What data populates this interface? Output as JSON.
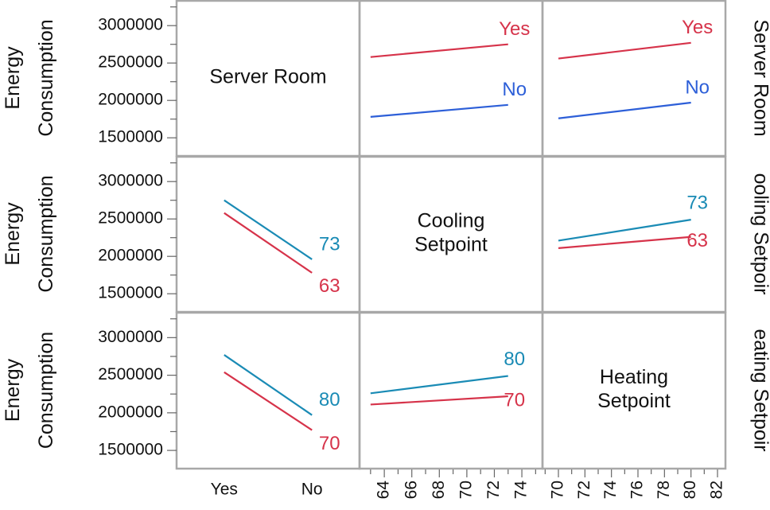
{
  "chart_data": {
    "type": "line",
    "title": "",
    "y_label": "Energy Consumption",
    "y_ticks": [
      1500000,
      2000000,
      2500000,
      3000000
    ],
    "y_range": [
      1300000,
      3300000
    ],
    "variables": [
      "Server Room",
      "Cooling Setpoint",
      "Heating Setpoint"
    ],
    "diagonal_labels": [
      [
        "Server Room"
      ],
      [
        "Cooling",
        "Setpoint"
      ],
      [
        "Heating",
        "Setpoint"
      ]
    ],
    "right_labels": [
      "Server Room",
      "ooling Setpoir",
      "eating Setpoir"
    ],
    "x_axes": [
      {
        "type": "categorical",
        "ticks": [
          "Yes",
          "No"
        ]
      },
      {
        "type": "numeric",
        "ticks": [
          64,
          66,
          68,
          70,
          72,
          74
        ],
        "range": [
          62.2,
          75.5
        ]
      },
      {
        "type": "numeric",
        "ticks": [
          70,
          72,
          74,
          76,
          78,
          80,
          82
        ],
        "range": [
          68.8,
          82.6
        ]
      }
    ],
    "panels": [
      {
        "row": 0,
        "col": 1,
        "series": [
          {
            "name": "Yes",
            "color": "#d6334a",
            "x": [
              63,
              73
            ],
            "y": [
              2580000,
              2750000
            ]
          },
          {
            "name": "No",
            "color": "#2d5fd8",
            "x": [
              63,
              73
            ],
            "y": [
              1780000,
              1940000
            ]
          }
        ]
      },
      {
        "row": 0,
        "col": 2,
        "series": [
          {
            "name": "Yes",
            "color": "#d6334a",
            "x": [
              70,
              80
            ],
            "y": [
              2560000,
              2770000
            ]
          },
          {
            "name": "No",
            "color": "#2d5fd8",
            "x": [
              70,
              80
            ],
            "y": [
              1760000,
              1970000
            ]
          }
        ]
      },
      {
        "row": 1,
        "col": 0,
        "series": [
          {
            "name": "73",
            "color": "#1a8bb5",
            "x": [
              "Yes",
              "No"
            ],
            "y": [
              2750000,
              1960000
            ]
          },
          {
            "name": "63",
            "color": "#d6334a",
            "x": [
              "Yes",
              "No"
            ],
            "y": [
              2580000,
              1780000
            ]
          }
        ]
      },
      {
        "row": 1,
        "col": 2,
        "series": [
          {
            "name": "73",
            "color": "#1a8bb5",
            "x": [
              70,
              80
            ],
            "y": [
              2210000,
              2490000
            ]
          },
          {
            "name": "63",
            "color": "#d6334a",
            "x": [
              70,
              80
            ],
            "y": [
              2110000,
              2260000
            ]
          }
        ]
      },
      {
        "row": 2,
        "col": 0,
        "series": [
          {
            "name": "80",
            "color": "#1a8bb5",
            "x": [
              "Yes",
              "No"
            ],
            "y": [
              2770000,
              1970000
            ]
          },
          {
            "name": "70",
            "color": "#d6334a",
            "x": [
              "Yes",
              "No"
            ],
            "y": [
              2540000,
              1770000
            ]
          }
        ]
      },
      {
        "row": 2,
        "col": 1,
        "series": [
          {
            "name": "80",
            "color": "#1a8bb5",
            "x": [
              63,
              73
            ],
            "y": [
              2260000,
              2490000
            ]
          },
          {
            "name": "70",
            "color": "#d6334a",
            "x": [
              63,
              73
            ],
            "y": [
              2110000,
              2220000
            ]
          }
        ]
      }
    ],
    "grid": false,
    "legend": "none"
  }
}
